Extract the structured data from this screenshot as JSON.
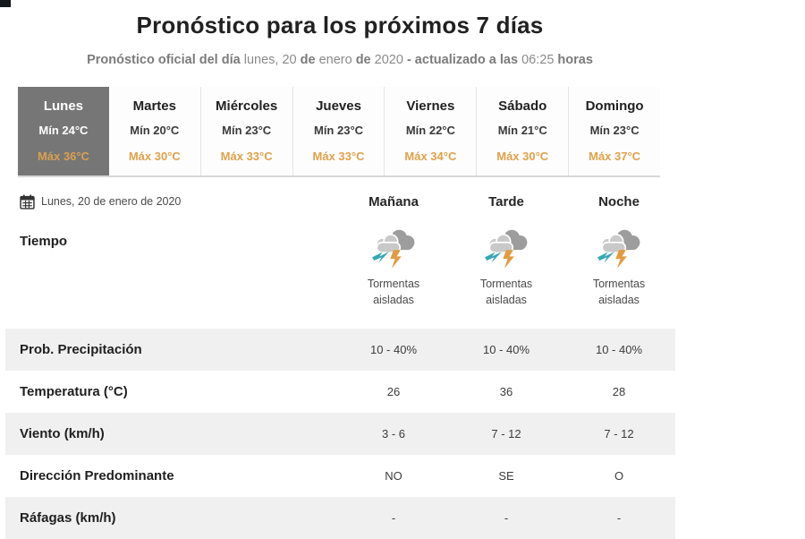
{
  "header": {
    "title": "Pronóstico para los próximos 7 días",
    "subtitle_segments": [
      {
        "text": "Pronóstico oficial del día ",
        "bold": true
      },
      {
        "text": "lunes, 20 ",
        "bold": false
      },
      {
        "text": "de ",
        "bold": true
      },
      {
        "text": "enero ",
        "bold": false
      },
      {
        "text": "de ",
        "bold": true
      },
      {
        "text": "2020 ",
        "bold": false
      },
      {
        "text": "- actualizado a las ",
        "bold": true
      },
      {
        "text": "06:25 ",
        "bold": false
      },
      {
        "text": "horas",
        "bold": true
      }
    ]
  },
  "day_tabs": [
    {
      "day": "Lunes",
      "min": "Mín 24°C",
      "max": "Máx 36°C",
      "selected": true
    },
    {
      "day": "Martes",
      "min": "Mín 20°C",
      "max": "Máx 30°C",
      "selected": false
    },
    {
      "day": "Miércoles",
      "min": "Mín 23°C",
      "max": "Máx 33°C",
      "selected": false
    },
    {
      "day": "Jueves",
      "min": "Mín 23°C",
      "max": "Máx 33°C",
      "selected": false
    },
    {
      "day": "Viernes",
      "min": "Mín 22°C",
      "max": "Máx 34°C",
      "selected": false
    },
    {
      "day": "Sábado",
      "min": "Mín 21°C",
      "max": "Máx 30°C",
      "selected": false
    },
    {
      "day": "Domingo",
      "min": "Mín 23°C",
      "max": "Máx 37°C",
      "selected": false
    }
  ],
  "detail": {
    "date_label": "Lunes, 20 de enero de 2020",
    "period_headers": [
      "Mañana",
      "Tarde",
      "Noche"
    ],
    "weather_row_label": "Tiempo",
    "weather": [
      {
        "condition": "Tormentas aisladas",
        "icon": "storm-cloud-icon"
      },
      {
        "condition": "Tormentas aisladas",
        "icon": "storm-cloud-icon"
      },
      {
        "condition": "Tormentas aisladas",
        "icon": "storm-cloud-icon"
      }
    ],
    "rows": [
      {
        "label": "Prob. Precipitación",
        "values": [
          "10 - 40%",
          "10 - 40%",
          "10 - 40%"
        ],
        "shaded": true
      },
      {
        "label": "Temperatura (°C)",
        "values": [
          "26",
          "36",
          "28"
        ],
        "shaded": false
      },
      {
        "label": "Viento (km/h)",
        "values": [
          "3 - 6",
          "7 - 12",
          "7 - 12"
        ],
        "shaded": true
      },
      {
        "label": "Dirección Predominante",
        "values": [
          "NO",
          "SE",
          "O"
        ],
        "shaded": false
      },
      {
        "label": "Ráfagas (km/h)",
        "values": [
          "-",
          "-",
          "-"
        ],
        "shaded": true
      }
    ]
  },
  "colors": {
    "selected_tab_bg": "#767676",
    "max_temp_text": "#e0a14b",
    "shaded_row_bg": "#f0f0f0",
    "title_text": "#212121",
    "subtitle_text": "#8a8a8a",
    "storm_cloud_back": "#9d9d9d",
    "storm_cloud_front": "#c9c9c9",
    "bolt_teal": "#35a7b7",
    "bolt_orange": "#e09c3e"
  }
}
